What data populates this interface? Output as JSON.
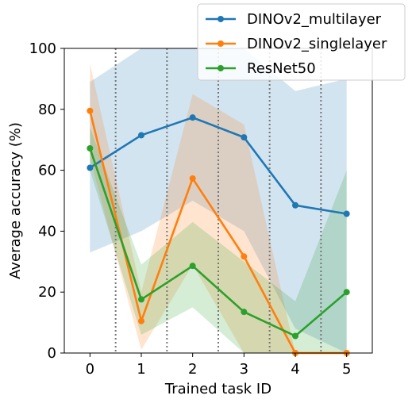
{
  "chart_data": {
    "type": "line",
    "xlabel": "Trained task ID",
    "ylabel": "Average accuracy (%)",
    "xlim": [
      -0.5,
      5.5
    ],
    "ylim": [
      0,
      100
    ],
    "x_ticks": [
      0,
      1,
      2,
      3,
      4,
      5
    ],
    "y_ticks": [
      0,
      20,
      40,
      60,
      80,
      100
    ],
    "task_boundaries": [
      0.5,
      1.5,
      2.5,
      3.5,
      4.5
    ],
    "grid": false,
    "legend_position": "upper right",
    "x": [
      0,
      1,
      2,
      3,
      4,
      5
    ],
    "series": [
      {
        "name": "DINOv2_multilayer",
        "color": "#1f77b4",
        "values": [
          60.8,
          71.5,
          77.3,
          70.8,
          48.5,
          45.7
        ],
        "band_upper": [
          89,
          100,
          100,
          100,
          86,
          90
        ],
        "band_lower": [
          33,
          40,
          50,
          40,
          8,
          0
        ]
      },
      {
        "name": "DINOv2_singlelayer",
        "color": "#ff7f0e",
        "values": [
          79.5,
          10.5,
          57.3,
          31.7,
          0,
          0
        ],
        "band_upper": [
          95,
          20,
          85,
          75,
          0,
          0
        ],
        "band_lower": [
          64,
          1,
          29,
          0,
          0,
          0
        ]
      },
      {
        "name": "ResNet50",
        "color": "#2ca02c",
        "values": [
          67.2,
          17.6,
          28.6,
          13.5,
          5.6,
          20.0
        ],
        "band_upper": [
          74,
          29,
          43,
          30,
          17,
          60
        ],
        "band_lower": [
          60,
          6,
          15,
          0,
          0,
          0
        ]
      }
    ]
  }
}
